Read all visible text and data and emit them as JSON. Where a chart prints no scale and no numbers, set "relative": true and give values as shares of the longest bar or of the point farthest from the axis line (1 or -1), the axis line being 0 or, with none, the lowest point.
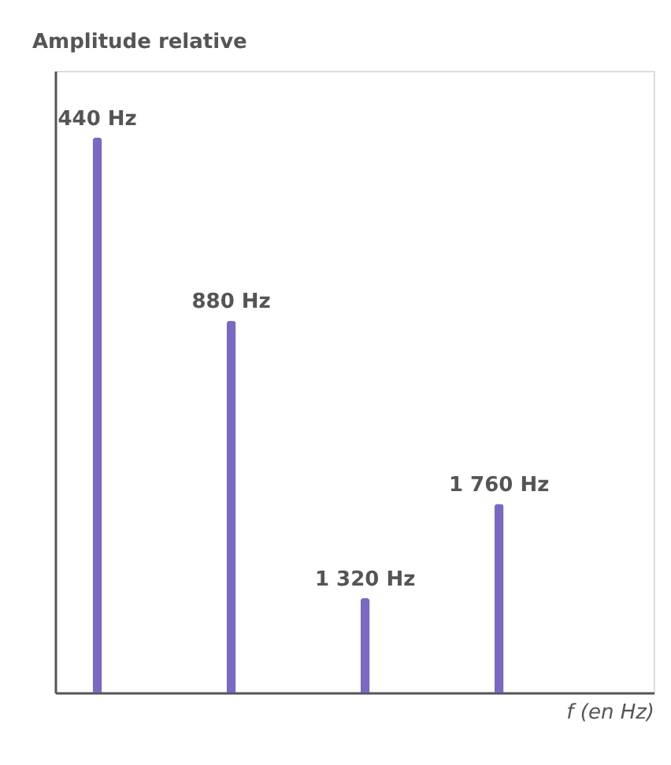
{
  "chart_data": {
    "type": "bar",
    "relative": true,
    "categories": [
      "440 Hz",
      "880 Hz",
      "1 320 Hz",
      "1 760 Hz"
    ],
    "values": [
      1,
      0.67,
      0.17,
      0.34
    ],
    "color": "#7b68c0",
    "ylabel": "Amplitude relative",
    "xlabel": "f (en Hz)",
    "grid": false
  }
}
